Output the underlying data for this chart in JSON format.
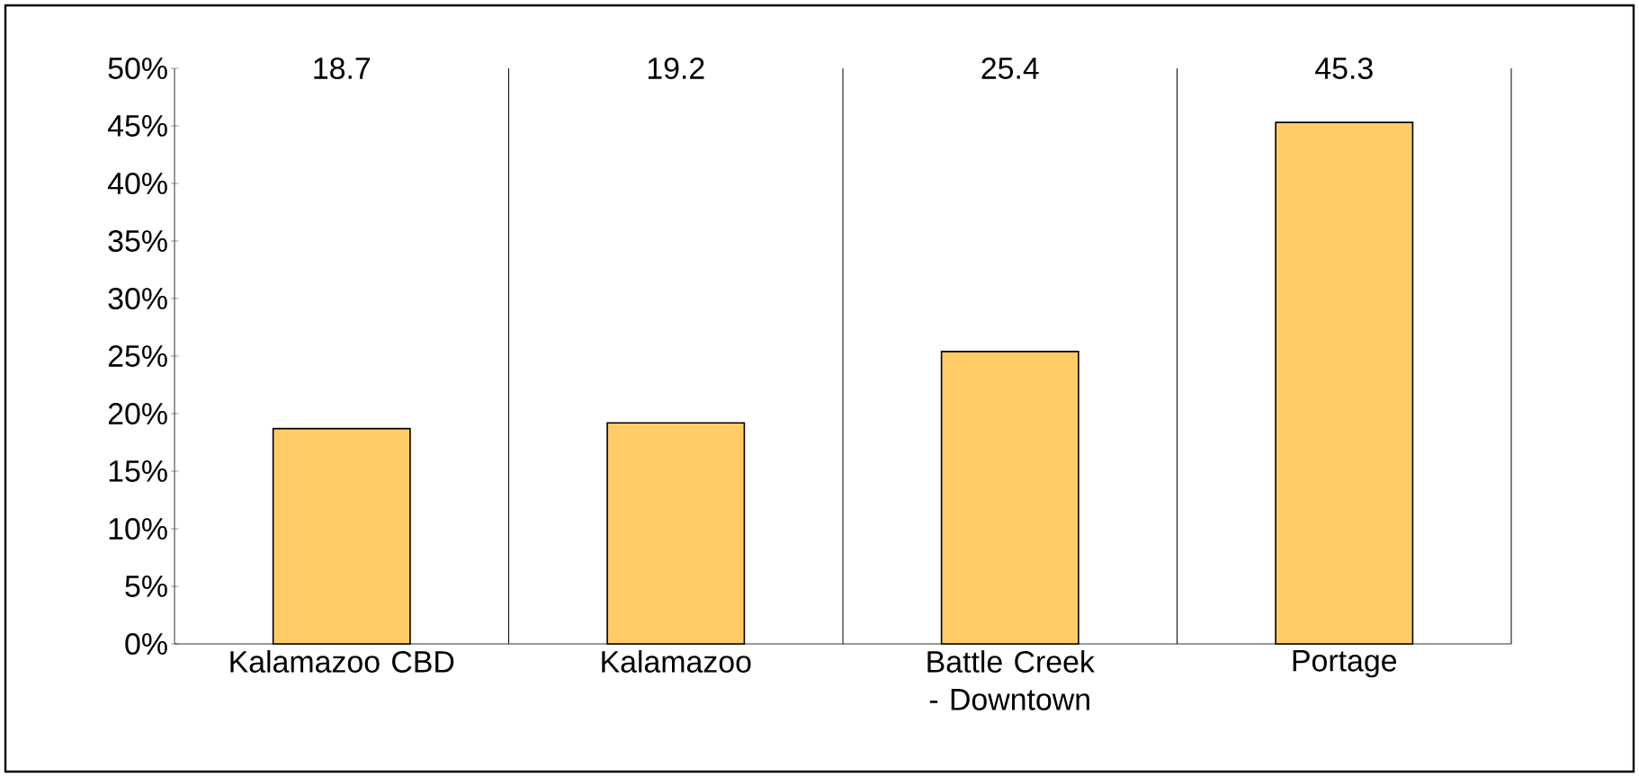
{
  "chart_data": {
    "type": "bar",
    "categories": [
      "Kalamazoo CBD",
      "Kalamazoo",
      "Battle Creek - Downtown",
      "Portage"
    ],
    "values": [
      18.7,
      19.2,
      25.4,
      45.3
    ],
    "color": "#ffcc66",
    "ylim": [
      0,
      50
    ],
    "yticks": [
      {
        "value": 0,
        "label": "0%"
      },
      {
        "value": 5,
        "label": "5%"
      },
      {
        "value": 10,
        "label": "10%"
      },
      {
        "value": 15,
        "label": "15%"
      },
      {
        "value": 20,
        "label": "20%"
      },
      {
        "value": 25,
        "label": "25%"
      },
      {
        "value": 30,
        "label": "30%"
      },
      {
        "value": 35,
        "label": "35%"
      },
      {
        "value": 40,
        "label": "40%"
      },
      {
        "value": 45,
        "label": "45%"
      },
      {
        "value": 50,
        "label": "50%"
      }
    ],
    "grid": "x",
    "annotations": [
      "18.7",
      "19.2",
      "25.4",
      "45.3"
    ]
  }
}
